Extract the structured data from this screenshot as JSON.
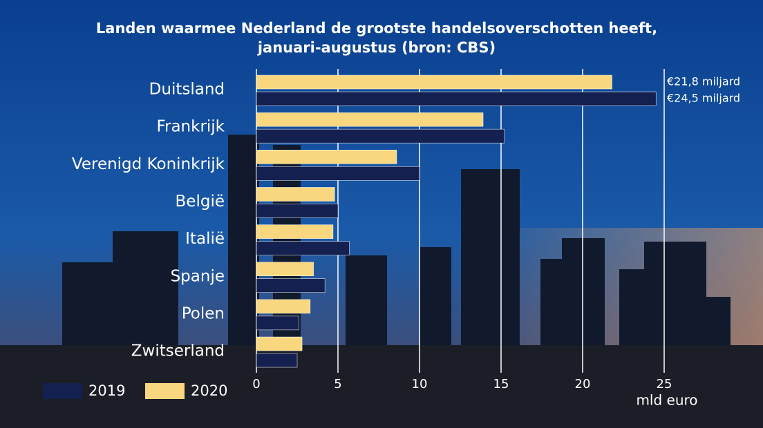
{
  "chart_data": {
    "type": "hbar",
    "title": "Landen waarmee Nederland de grootste handelsoverschotten heeft,",
    "subtitle": "januari-augustus (bron: CBS)",
    "x_label": "mld euro",
    "categories": [
      "Duitsland",
      "Frankrijk",
      "Verenigd Koninkrijk",
      "België",
      "Italië",
      "Spanje",
      "Polen",
      "Zwitserland"
    ],
    "series": [
      {
        "name": "2020",
        "color": "#f9d77e",
        "values": [
          21.8,
          13.9,
          8.6,
          4.8,
          4.7,
          3.5,
          3.3,
          2.8
        ],
        "value_labels": [
          "€21,8 miljard",
          null,
          null,
          null,
          null,
          null,
          null,
          null
        ]
      },
      {
        "name": "2019",
        "color": "#14204f",
        "values": [
          24.5,
          15.2,
          10.0,
          5.0,
          5.7,
          4.2,
          2.6,
          2.5
        ],
        "value_labels": [
          "€24,5 miljard",
          null,
          null,
          null,
          null,
          null,
          null,
          null
        ]
      }
    ],
    "xlim": [
      0,
      25
    ],
    "xticks": [
      0,
      5,
      10,
      15,
      20,
      25
    ],
    "grid": true
  }
}
